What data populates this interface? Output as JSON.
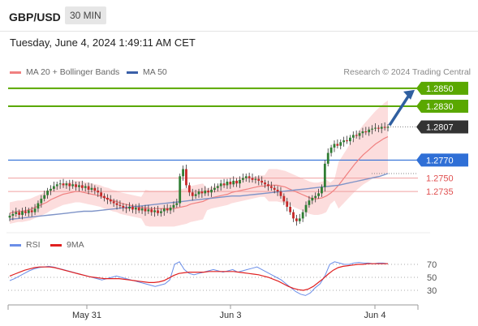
{
  "header": {
    "symbol": "GBP/USD",
    "interval": "30 MIN"
  },
  "datetime": "Tuesday, June 4, 2024 1:49:11 AM CET",
  "legend": {
    "ma20": {
      "label": "MA 20 + Bollinger Bands",
      "color": "#f08080"
    },
    "ma50": {
      "label": "MA 50",
      "color": "#3a5fa8"
    },
    "rsi": {
      "label": "RSI",
      "color": "#6b8ee8"
    },
    "ma9": {
      "label": "9MA",
      "color": "#e02020"
    }
  },
  "credit": "Research © 2024 Trading Central",
  "price_levels": [
    {
      "value": "1.2850",
      "kind": "target",
      "color": "#5aa800"
    },
    {
      "value": "1.2830",
      "kind": "target",
      "color": "#5aa800"
    },
    {
      "value": "1.2807",
      "kind": "current",
      "color": "#333333"
    },
    {
      "value": "1.2770",
      "kind": "pivot",
      "color": "#2f6fd6"
    },
    {
      "value": "1.2750",
      "kind": "support",
      "color": "#e05050"
    },
    {
      "value": "1.2735",
      "kind": "support",
      "color": "#e05050"
    }
  ],
  "rsi_levels": [
    "70",
    "50",
    "30"
  ],
  "x_labels": [
    "May 31",
    "Jun 3",
    "Jun 4"
  ],
  "chart_data": {
    "type": "candlestick",
    "instrument": "GBP/USD",
    "timeframe": "30 MIN",
    "price_axis_labels": [
      1.285,
      1.283,
      1.2807,
      1.277,
      1.275,
      1.2735
    ],
    "ylim": [
      1.269,
      1.2858
    ],
    "close": [
      1.2708,
      1.271,
      1.2712,
      1.2709,
      1.2713,
      1.2711,
      1.2714,
      1.2712,
      1.2716,
      1.2722,
      1.2727,
      1.2731,
      1.2736,
      1.2738,
      1.2741,
      1.2743,
      1.2744,
      1.2742,
      1.2744,
      1.2741,
      1.2743,
      1.274,
      1.2742,
      1.2739,
      1.2741,
      1.2737,
      1.2739,
      1.2736,
      1.2734,
      1.273,
      1.2728,
      1.2726,
      1.2724,
      1.2722,
      1.272,
      1.2719,
      1.2717,
      1.2716,
      1.2718,
      1.2715,
      1.2717,
      1.2714,
      1.2716,
      1.2713,
      1.2715,
      1.2712,
      1.2714,
      1.2711,
      1.2713,
      1.2716,
      1.2714,
      1.2717,
      1.272,
      1.2722,
      1.2752,
      1.276,
      1.2742,
      1.2734,
      1.273,
      1.2732,
      1.2735,
      1.2733,
      1.2736,
      1.2734,
      1.2737,
      1.2739,
      1.2741,
      1.2744,
      1.2742,
      1.2746,
      1.2743,
      1.2747,
      1.2744,
      1.2748,
      1.275,
      1.2752,
      1.275,
      1.2748,
      1.2749,
      1.2747,
      1.2745,
      1.2743,
      1.2741,
      1.2739,
      1.2737,
      1.2735,
      1.273,
      1.2724,
      1.2718,
      1.2712,
      1.2705,
      1.2702,
      1.2705,
      1.2712,
      1.272,
      1.2725,
      1.2728,
      1.273,
      1.2733,
      1.274,
      1.2766,
      1.2778,
      1.2784,
      1.2788,
      1.2786,
      1.279,
      1.2792,
      1.2791,
      1.2795,
      1.2798,
      1.2797,
      1.28,
      1.2802,
      1.2801,
      1.2804,
      1.2805,
      1.2806,
      1.2805,
      1.2807,
      1.2806,
      1.2807
    ],
    "ma20": [
      1.2711,
      1.2712,
      1.2713,
      1.2713,
      1.2714,
      1.2715,
      1.2717,
      1.2719,
      1.2721,
      1.2723,
      1.2726,
      1.2728,
      1.273,
      1.2732,
      1.2733,
      1.2734,
      1.2735,
      1.2735,
      1.2734,
      1.2733,
      1.2732,
      1.2731,
      1.273,
      1.2728,
      1.2727,
      1.2725,
      1.2724,
      1.2722,
      1.2721,
      1.272,
      1.2719,
      1.2718,
      1.2717,
      1.2717,
      1.2716,
      1.2716,
      1.2716,
      1.2716,
      1.2716,
      1.2716,
      1.2716,
      1.2717,
      1.2718,
      1.2719,
      1.2721,
      1.2722,
      1.2723,
      1.2724,
      1.2726,
      1.2728,
      1.2729,
      1.273,
      1.2731,
      1.2732,
      1.2734,
      1.2735,
      1.2736,
      1.2737,
      1.2738,
      1.2739,
      1.274,
      1.2741,
      1.2741,
      1.2742,
      1.2742,
      1.2742,
      1.2741,
      1.274,
      1.2738,
      1.2736,
      1.2734,
      1.2732,
      1.273,
      1.2728,
      1.2727,
      1.2727,
      1.2728,
      1.273,
      1.2733,
      1.2737,
      1.2742,
      1.2748,
      1.2754,
      1.276,
      1.2766,
      1.2771,
      1.2776,
      1.278,
      1.2784,
      1.2788,
      1.2791,
      1.2794,
      1.2796
    ],
    "ma50": [
      1.2704,
      1.2705,
      1.2706,
      1.2707,
      1.2708,
      1.2709,
      1.271,
      1.2711,
      1.2712,
      1.2713,
      1.2713,
      1.2714,
      1.2715,
      1.2716,
      1.2717,
      1.2718,
      1.2719,
      1.272,
      1.2721,
      1.2722,
      1.2723,
      1.2724,
      1.2725,
      1.2726,
      1.2727,
      1.2728,
      1.2729,
      1.273,
      1.273,
      1.2731,
      1.2732,
      1.2733,
      1.2734,
      1.2735,
      1.2736,
      1.2737,
      1.2738,
      1.2739,
      1.274,
      1.2741,
      1.2742,
      1.2744,
      1.2746,
      1.2748,
      1.275,
      1.2752,
      1.2755
    ],
    "rsi": [
      45,
      48,
      52,
      56,
      60,
      63,
      65,
      66,
      67,
      66,
      64,
      62,
      60,
      58,
      56,
      54,
      52,
      50,
      48,
      46,
      48,
      50,
      52,
      50,
      48,
      46,
      44,
      42,
      40,
      38,
      36,
      38,
      40,
      46,
      70,
      74,
      62,
      56,
      54,
      56,
      58,
      60,
      62,
      60,
      58,
      60,
      62,
      58,
      60,
      62,
      64,
      66,
      62,
      58,
      54,
      50,
      46,
      40,
      34,
      28,
      24,
      22,
      26,
      34,
      40,
      52,
      70,
      74,
      72,
      70,
      70,
      72,
      73,
      72,
      72,
      71,
      72,
      72,
      71
    ],
    "ma9": [
      52,
      55,
      58,
      61,
      63,
      65,
      66,
      66,
      66,
      65,
      63,
      61,
      59,
      57,
      55,
      53,
      51,
      50,
      49,
      48,
      48,
      48,
      48,
      47,
      46,
      45,
      44,
      43,
      42,
      42,
      43,
      45,
      49,
      53,
      56,
      57,
      58,
      58,
      58,
      58,
      59,
      59,
      59,
      59,
      59,
      59,
      58,
      57,
      56,
      55,
      54,
      52,
      50,
      47,
      44,
      40,
      36,
      33,
      31,
      30,
      32,
      36,
      42,
      48,
      55,
      61,
      65,
      67,
      68,
      69,
      70,
      70,
      71,
      71,
      71,
      71,
      71
    ],
    "rsi_ylim": [
      15,
      85
    ]
  }
}
